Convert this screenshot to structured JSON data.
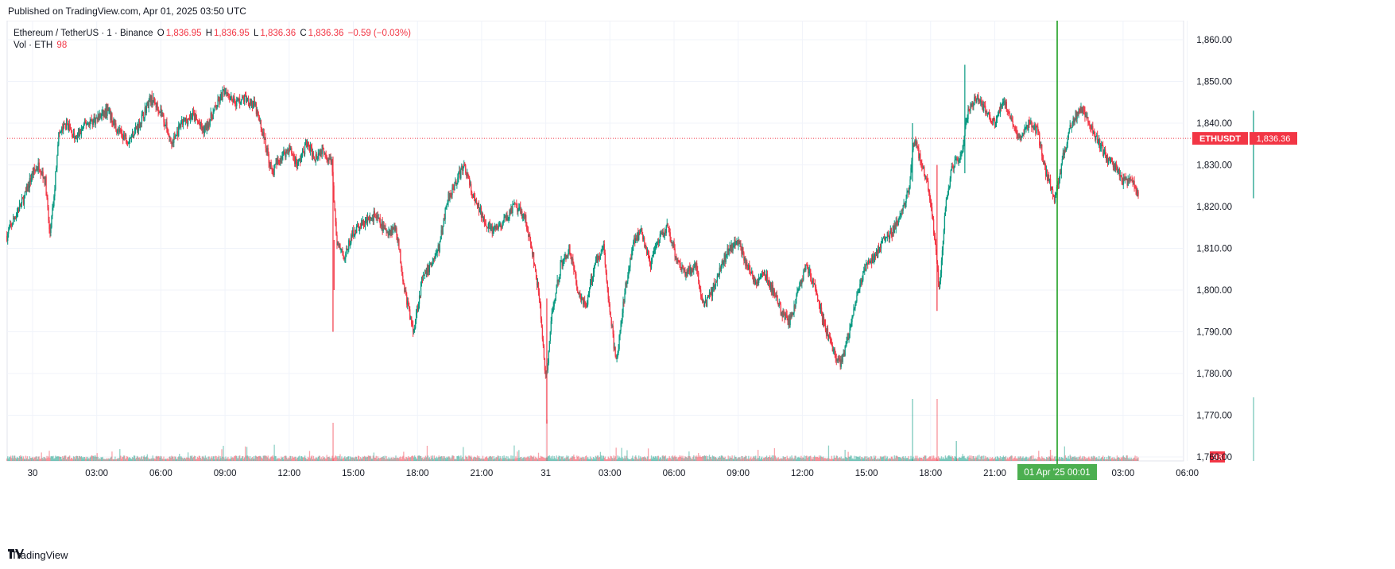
{
  "header": {
    "published": "Published on TradingView.com, Apr 01, 2025 03:50 UTC"
  },
  "legend": {
    "symbol": "Ethereum / TetherUS · 1 · Binance",
    "o_label": "O",
    "o_value": "1,836.95",
    "h_label": "H",
    "h_value": "1,836.95",
    "l_label": "L",
    "l_value": "1,836.36",
    "c_label": "C",
    "c_value": "1,836.36",
    "change": "−0.59 (−0.03%)",
    "vol_label": "Vol · ETH",
    "vol_value": "98"
  },
  "footer": {
    "brand": "TradingView",
    "logo": "tradingview-logo-icon"
  },
  "colors": {
    "up": "#089981",
    "down": "#f23645",
    "crosshair": "#1e9e22",
    "crosshair_label_bg": "#4caf50"
  },
  "chart_data": {
    "type": "candlestick",
    "title": "",
    "symbol": "ETHUSDT",
    "last_price": 1836.36,
    "last_price_label": "1,836.36",
    "last_volume_label": "98",
    "ylim": [
      1760,
      1862
    ],
    "y_ticks": [
      {
        "v": 1860,
        "label": "1,860.00"
      },
      {
        "v": 1850,
        "label": "1,850.00"
      },
      {
        "v": 1840,
        "label": "1,840.00"
      },
      {
        "v": 1830,
        "label": "1,830.00"
      },
      {
        "v": 1820,
        "label": "1,820.00"
      },
      {
        "v": 1810,
        "label": "1,810.00"
      },
      {
        "v": 1800,
        "label": "1,800.00"
      },
      {
        "v": 1790,
        "label": "1,790.00"
      },
      {
        "v": 1780,
        "label": "1,780.00"
      },
      {
        "v": 1770,
        "label": "1,770.00"
      },
      {
        "v": 1760,
        "label": "1,760.00"
      }
    ],
    "x_range_hours": [
      -1.3,
      30.2
    ],
    "x_ticks": [
      {
        "t": 0,
        "label": "30"
      },
      {
        "t": 3,
        "label": "03:00"
      },
      {
        "t": 6,
        "label": "06:00"
      },
      {
        "t": 9,
        "label": "09:00"
      },
      {
        "t": 12,
        "label": "12:00"
      },
      {
        "t": 15,
        "label": "15:00"
      },
      {
        "t": 18,
        "label": "18:00"
      },
      {
        "t": 21,
        "label": "21:00"
      },
      {
        "t": 24,
        "label": "31"
      },
      {
        "t": 27,
        "label": "03:00"
      },
      {
        "t": 30,
        "label": "06:00"
      },
      {
        "t": 33,
        "label": "09:00"
      },
      {
        "t": 36,
        "label": "12:00"
      },
      {
        "t": 39,
        "label": "15:00"
      },
      {
        "t": 42,
        "label": "18:00"
      },
      {
        "t": 45,
        "label": "21:00"
      },
      {
        "t": 48,
        "label": "01 Apr '25   00:01"
      },
      {
        "t": 51,
        "label": "03:00"
      },
      {
        "t": 54,
        "label": "06:00"
      }
    ],
    "crosshair_label": "01 Apr '25   00:01",
    "price_path": [
      [
        -1.2,
        1813
      ],
      [
        -0.8,
        1818
      ],
      [
        -0.4,
        1822
      ],
      [
        0,
        1828
      ],
      [
        0.3,
        1830
      ],
      [
        0.6,
        1826
      ],
      [
        0.8,
        1813
      ],
      [
        1.0,
        1822
      ],
      [
        1.2,
        1837
      ],
      [
        1.6,
        1840
      ],
      [
        2,
        1836
      ],
      [
        2.5,
        1840
      ],
      [
        3,
        1841
      ],
      [
        3.5,
        1843
      ],
      [
        4,
        1838
      ],
      [
        4.5,
        1836
      ],
      [
        5,
        1840
      ],
      [
        5.5,
        1846
      ],
      [
        6,
        1843
      ],
      [
        6.5,
        1835
      ],
      [
        7,
        1840
      ],
      [
        7.5,
        1842
      ],
      [
        8,
        1838
      ],
      [
        8.5,
        1843
      ],
      [
        9,
        1848
      ],
      [
        9.5,
        1845
      ],
      [
        10,
        1846
      ],
      [
        10.4,
        1844
      ],
      [
        10.8,
        1837
      ],
      [
        11.2,
        1828
      ],
      [
        11.6,
        1832
      ],
      [
        12,
        1834
      ],
      [
        12.4,
        1830
      ],
      [
        12.8,
        1835
      ],
      [
        13.2,
        1832
      ],
      [
        13.6,
        1834
      ],
      [
        14,
        1830
      ],
      [
        14.2,
        1812
      ],
      [
        14.6,
        1808
      ],
      [
        15,
        1814
      ],
      [
        15.5,
        1816
      ],
      [
        16,
        1818
      ],
      [
        16.5,
        1814
      ],
      [
        17,
        1815
      ],
      [
        17.4,
        1800
      ],
      [
        17.8,
        1790
      ],
      [
        18.2,
        1802
      ],
      [
        18.6,
        1806
      ],
      [
        19,
        1810
      ],
      [
        19.4,
        1822
      ],
      [
        19.8,
        1826
      ],
      [
        20.2,
        1830
      ],
      [
        20.6,
        1822
      ],
      [
        21,
        1818
      ],
      [
        21.5,
        1814
      ],
      [
        22,
        1816
      ],
      [
        22.5,
        1820
      ],
      [
        23,
        1818
      ],
      [
        23.4,
        1808
      ],
      [
        23.7,
        1798
      ],
      [
        24,
        1778
      ],
      [
        24.3,
        1795
      ],
      [
        24.7,
        1806
      ],
      [
        25.1,
        1810
      ],
      [
        25.5,
        1800
      ],
      [
        25.9,
        1796
      ],
      [
        26.3,
        1807
      ],
      [
        26.7,
        1810
      ],
      [
        27,
        1795
      ],
      [
        27.3,
        1782
      ],
      [
        27.7,
        1800
      ],
      [
        28.1,
        1812
      ],
      [
        28.5,
        1814
      ],
      [
        28.9,
        1806
      ],
      [
        29.3,
        1812
      ],
      [
        29.7,
        1815
      ],
      [
        30.1,
        1808
      ],
      [
        30.5,
        1804
      ],
      [
        31,
        1806
      ],
      [
        31.4,
        1796
      ],
      [
        31.8,
        1800
      ],
      [
        32.2,
        1806
      ],
      [
        32.6,
        1810
      ],
      [
        33,
        1812
      ],
      [
        33.4,
        1806
      ],
      [
        33.8,
        1802
      ],
      [
        34.2,
        1804
      ],
      [
        34.6,
        1800
      ],
      [
        35,
        1795
      ],
      [
        35.4,
        1792
      ],
      [
        35.8,
        1800
      ],
      [
        36.2,
        1806
      ],
      [
        36.6,
        1800
      ],
      [
        37,
        1792
      ],
      [
        37.4,
        1786
      ],
      [
        37.8,
        1782
      ],
      [
        38.2,
        1790
      ],
      [
        38.6,
        1800
      ],
      [
        39,
        1806
      ],
      [
        39.4,
        1808
      ],
      [
        39.8,
        1812
      ],
      [
        40.2,
        1814
      ],
      [
        40.6,
        1818
      ],
      [
        41,
        1824
      ],
      [
        41.2,
        1836
      ],
      [
        41.5,
        1832
      ],
      [
        41.9,
        1824
      ],
      [
        42.2,
        1812
      ],
      [
        42.4,
        1800
      ],
      [
        42.7,
        1820
      ],
      [
        43,
        1830
      ],
      [
        43.4,
        1832
      ],
      [
        43.8,
        1844
      ],
      [
        44.2,
        1846
      ],
      [
        44.6,
        1843
      ],
      [
        45,
        1840
      ],
      [
        45.4,
        1846
      ],
      [
        45.8,
        1840
      ],
      [
        46.2,
        1836
      ],
      [
        46.6,
        1840
      ],
      [
        47,
        1838
      ],
      [
        47.4,
        1828
      ],
      [
        47.8,
        1822
      ],
      [
        48.2,
        1832
      ],
      [
        48.6,
        1840
      ],
      [
        49,
        1844
      ],
      [
        49.4,
        1840
      ],
      [
        49.8,
        1836
      ],
      [
        50.2,
        1832
      ],
      [
        50.6,
        1830
      ],
      [
        51,
        1826
      ],
      [
        51.4,
        1826
      ],
      [
        51.8,
        1822
      ],
      [
        52.2,
        1818
      ],
      [
        52.6,
        1822
      ],
      [
        53,
        1824
      ],
      [
        53.4,
        1825
      ],
      [
        53.8,
        1822
      ],
      [
        54.2,
        1820
      ],
      [
        54.6,
        1826
      ],
      [
        55,
        1824
      ],
      [
        55.4,
        1822
      ],
      [
        55.8,
        1826
      ],
      [
        56.2,
        1828
      ],
      [
        56.6,
        1824
      ],
      [
        57,
        1826
      ],
      [
        57.4,
        1830
      ],
      [
        57.8,
        1836
      ],
      [
        58.2,
        1840
      ],
      [
        58.6,
        1838
      ],
      [
        58.9,
        1836.36
      ]
    ]
  }
}
